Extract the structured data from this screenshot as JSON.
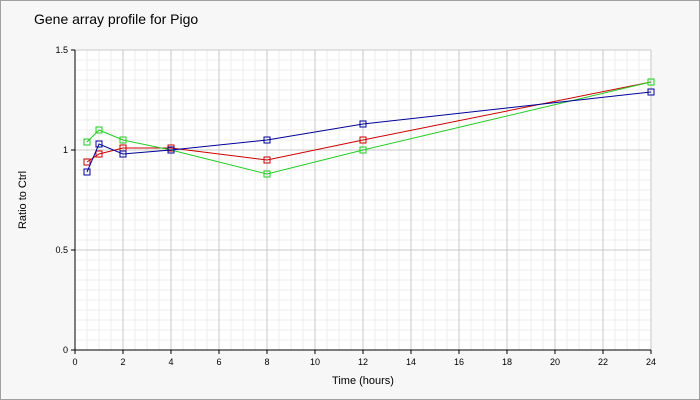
{
  "chart_data": {
    "type": "line",
    "title": "Gene array profile for Pigo",
    "xlabel": "Time (hours)",
    "ylabel": "Ratio to Ctrl",
    "xlim": [
      0,
      24
    ],
    "ylim": [
      0,
      1.5
    ],
    "x_ticks": [
      0,
      2,
      4,
      6,
      8,
      10,
      12,
      14,
      16,
      18,
      20,
      22,
      24
    ],
    "y_ticks": [
      0,
      0.5,
      1,
      1.5
    ],
    "x_tick_labels": [
      "0",
      "2",
      "4",
      "6",
      "8",
      "10",
      "12",
      "14",
      "16",
      "18",
      "20",
      "22",
      "24"
    ],
    "y_tick_labels": [
      "0",
      "0.5",
      "1",
      "1.5"
    ],
    "grid": true,
    "legend": "none",
    "marker": "square",
    "series": [
      {
        "color": "#cc0000",
        "x": [
          0.5,
          1,
          2,
          4,
          8,
          12,
          24
        ],
        "y": [
          0.94,
          0.98,
          1.01,
          1.01,
          0.95,
          1.05,
          1.34
        ]
      },
      {
        "color": "#22cc22",
        "x": [
          0.5,
          1,
          2,
          4,
          8,
          12,
          24
        ],
        "y": [
          1.04,
          1.1,
          1.05,
          1.0,
          0.88,
          1.0,
          1.34
        ]
      },
      {
        "color": "#000099",
        "x": [
          0.5,
          1,
          2,
          4,
          8,
          12,
          24
        ],
        "y": [
          0.89,
          1.03,
          0.98,
          1.0,
          1.05,
          1.13,
          1.29
        ]
      }
    ]
  }
}
